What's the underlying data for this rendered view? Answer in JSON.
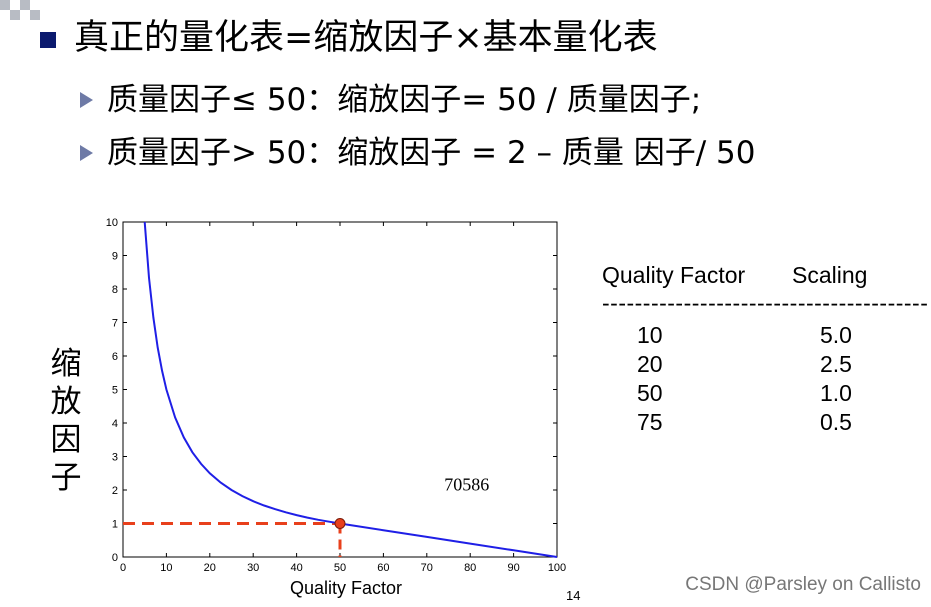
{
  "slide": {
    "heading": "真正的量化表=缩放因子×基本量化表",
    "bullets": [
      "质量因子≤ 50：缩放因子= 50 / 质量因子;",
      "质量因子> 50：缩放因子 = 2 – 质量 因子/ 50"
    ],
    "y_axis_label": "缩放因子",
    "page_number": "14"
  },
  "chart_data": {
    "type": "line",
    "title": "",
    "xlabel": "Quality Factor",
    "ylabel": "缩放因子",
    "xlim": [
      0,
      100
    ],
    "ylim": [
      0,
      10
    ],
    "xticks": [
      0,
      10,
      20,
      30,
      40,
      50,
      60,
      70,
      80,
      90,
      100
    ],
    "yticks": [
      0,
      1,
      2,
      3,
      4,
      5,
      6,
      7,
      8,
      9,
      10
    ],
    "grid": false,
    "series": [
      {
        "color": "#1f1fe6",
        "x": [
          5,
          6,
          7,
          8,
          9,
          10,
          12,
          14,
          16,
          18,
          20,
          22.5,
          25,
          27.5,
          30,
          32.5,
          35,
          37.5,
          40,
          42.5,
          45,
          47.5,
          50,
          60,
          70,
          80,
          90,
          100
        ],
        "y": [
          10,
          8.333,
          7.143,
          6.25,
          5.556,
          5.0,
          4.167,
          3.571,
          3.125,
          2.778,
          2.5,
          2.222,
          2.0,
          1.818,
          1.667,
          1.538,
          1.429,
          1.333,
          1.25,
          1.176,
          1.111,
          1.053,
          1.0,
          0.8,
          0.6,
          0.4,
          0.2,
          0.0
        ]
      }
    ],
    "annotations": [
      {
        "text": "70586",
        "x": 80,
        "y": 2.05
      }
    ],
    "highlight_point": {
      "x": 50,
      "y": 1.0,
      "color": "#e8401c"
    },
    "dashed_guides_color": "#e8401c"
  },
  "table": {
    "headers": [
      "Quality Factor",
      "Scaling"
    ],
    "rule": "----------------------------------------",
    "rows": [
      {
        "quality": "10",
        "scaling": "5.0"
      },
      {
        "quality": "20",
        "scaling": "2.5"
      },
      {
        "quality": "50",
        "scaling": "1.0"
      },
      {
        "quality": "75",
        "scaling": "0.5"
      }
    ]
  },
  "watermark": "CSDN @Parsley on Callisto"
}
